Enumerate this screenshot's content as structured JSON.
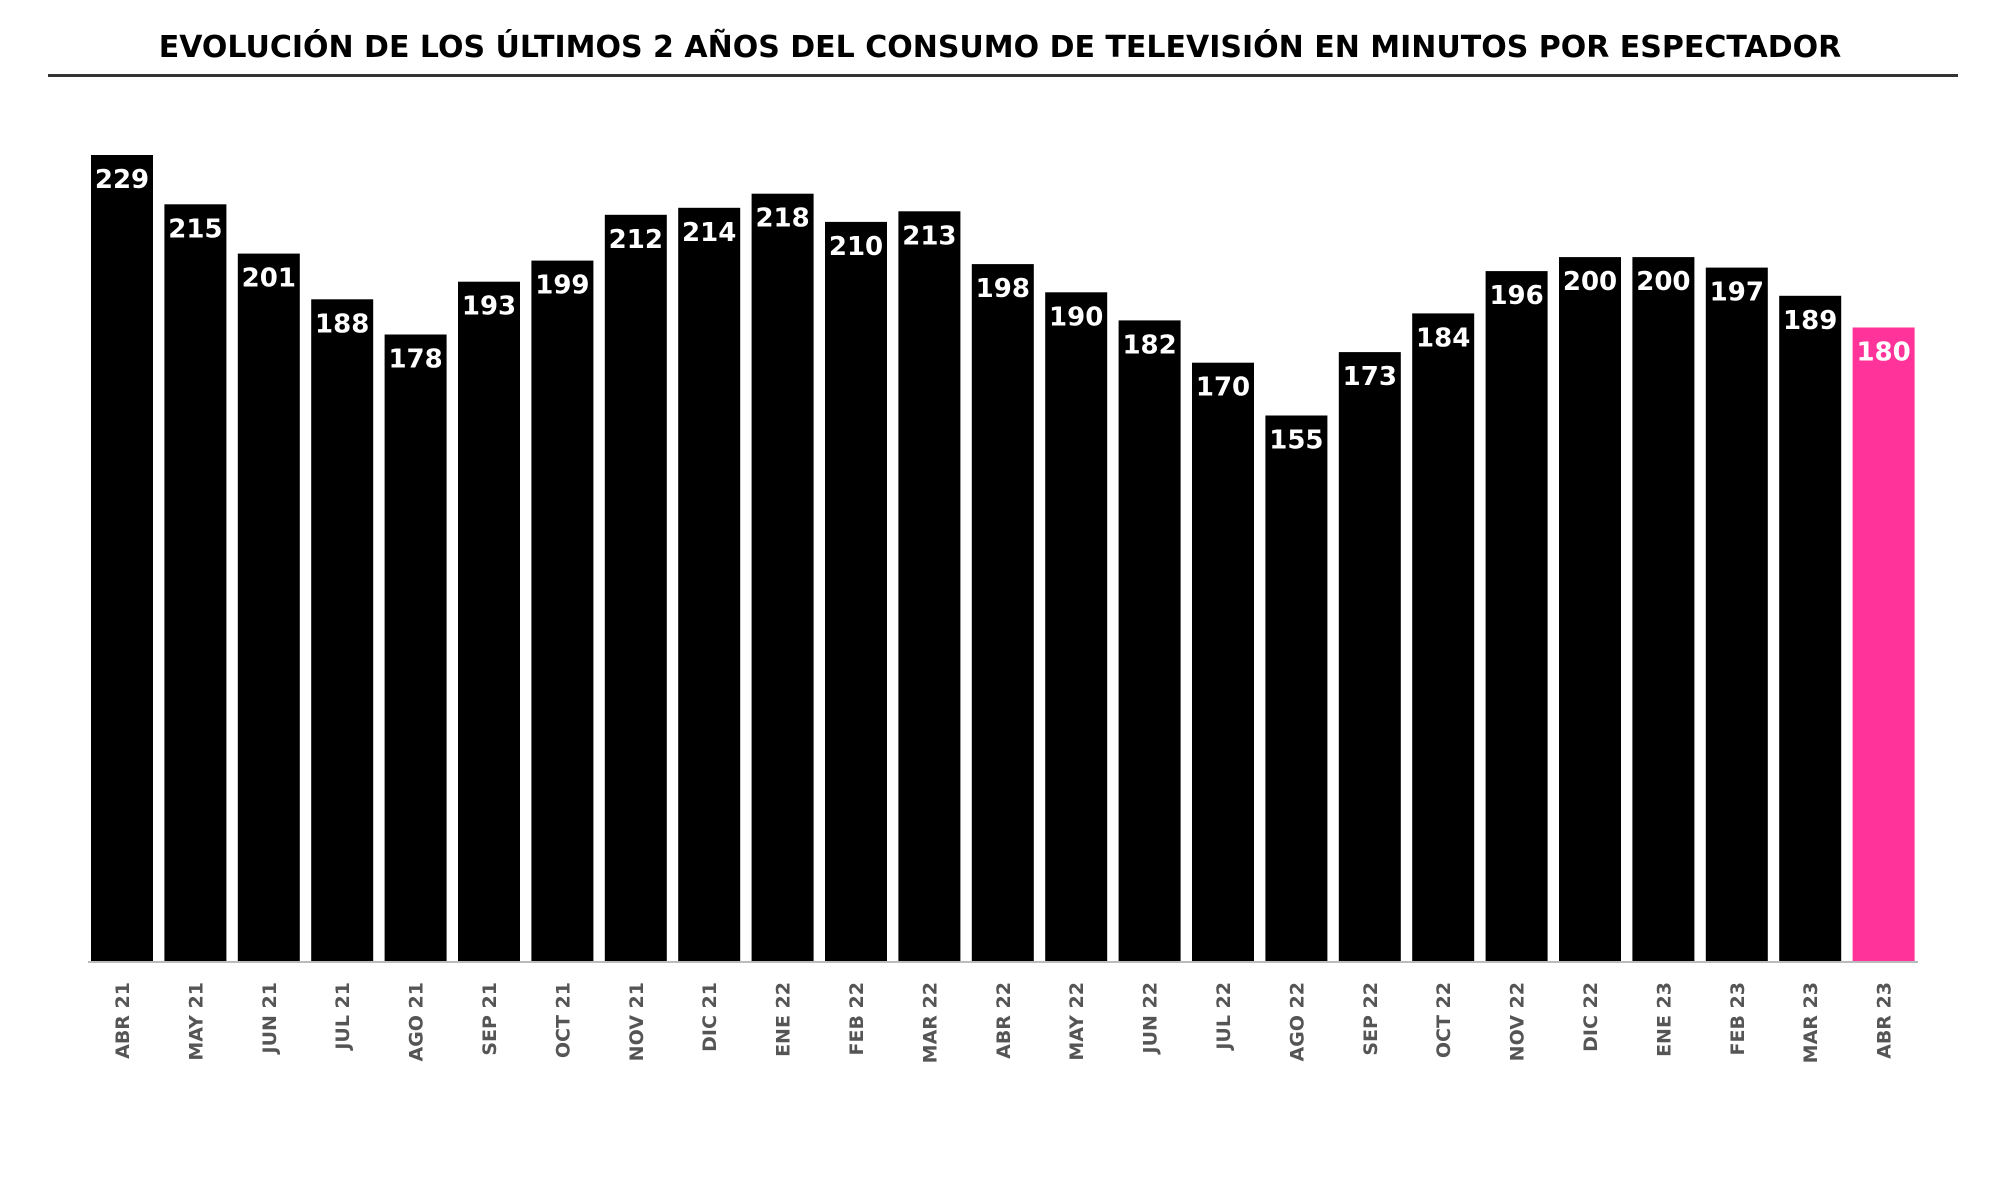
{
  "chart_data": {
    "type": "bar",
    "title": "EVOLUCIÓN DE LOS ÚLTIMOS 2 AÑOS DEL CONSUMO DE TELEVISIÓN EN MINUTOS POR ESPECTADOR",
    "xlabel": "",
    "ylabel": "",
    "categories": [
      "ABR 21",
      "MAY 21",
      "JUN 21",
      "JUL 21",
      "AGO 21",
      "SEP 21",
      "OCT 21",
      "NOV 21",
      "DIC 21",
      "ENE 22",
      "FEB 22",
      "MAR 22",
      "ABR 22",
      "MAY 22",
      "JUN 22",
      "JUL 22",
      "AGO 22",
      "SEP 22",
      "OCT 22",
      "NOV 22",
      "DIC 22",
      "ENE 23",
      "FEB 23",
      "MAR 23",
      "ABR 23"
    ],
    "values": [
      229,
      215,
      201,
      188,
      178,
      193,
      199,
      212,
      214,
      218,
      210,
      213,
      198,
      190,
      182,
      170,
      155,
      173,
      184,
      196,
      200,
      200,
      197,
      189,
      180
    ],
    "ylim": [
      0,
      229
    ],
    "grid": false,
    "legend": "none",
    "bar_color": "#000000",
    "highlight_index": 24,
    "highlight_color": "#ff3399",
    "value_label_color": "#ffffff"
  }
}
